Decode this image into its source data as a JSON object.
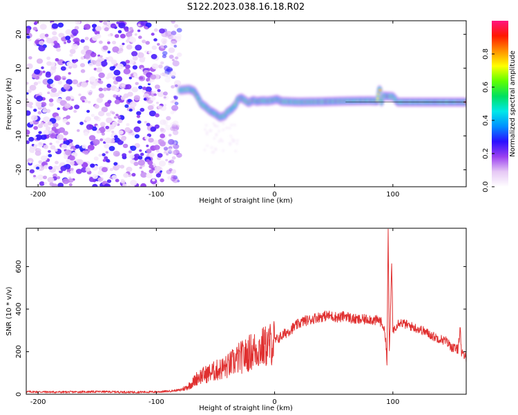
{
  "title": "S122.2023.038.16.18.R02",
  "chart_data": [
    {
      "type": "heatmap",
      "xlabel": "Height of straight line (km)",
      "ylabel": "Frequency (Hz)",
      "xlim": [
        -210,
        162
      ],
      "ylim": [
        -25,
        24
      ],
      "xticks": [
        -200,
        -100,
        0,
        100
      ],
      "yticks": [
        -20,
        -10,
        0,
        10,
        20
      ],
      "colorbar": {
        "label": "Normalized spectral amplitude",
        "range": [
          0,
          1
        ],
        "ticks": [
          "0.0",
          "0.2",
          "0.4",
          "0.6",
          "0.8"
        ],
        "tick_values": [
          0.0,
          0.2,
          0.4,
          0.6,
          0.8
        ],
        "colors": [
          "#ffffff",
          "#e6c8f5",
          "#9a40f0",
          "#2a10ff",
          "#0090ff",
          "#00e8e8",
          "#00e060",
          "#60ff00",
          "#ffff00",
          "#ff9000",
          "#ff1800",
          "#ff1480"
        ]
      },
      "noise_region": {
        "x_range": [
          -210,
          -80
        ],
        "y_range": [
          -25,
          24
        ]
      },
      "centerline": [
        [
          -80,
          3.5
        ],
        [
          -72,
          3.8
        ],
        [
          -68,
          3.2
        ],
        [
          -65,
          1.5
        ],
        [
          -62,
          -0.5
        ],
        [
          -58,
          -1.5
        ],
        [
          -55,
          -2.5
        ],
        [
          -50,
          -3.5
        ],
        [
          -46,
          -4.5
        ],
        [
          -42,
          -4.0
        ],
        [
          -40,
          -3.0
        ],
        [
          -36,
          -2.0
        ],
        [
          -33,
          -0.8
        ],
        [
          -31,
          0.8
        ],
        [
          -28,
          1.2
        ],
        [
          -25,
          0.5
        ],
        [
          -22,
          -0.2
        ],
        [
          -18,
          0.5
        ],
        [
          -15,
          0.2
        ],
        [
          -10,
          0.4
        ],
        [
          -6,
          0.3
        ],
        [
          -2,
          0.5
        ],
        [
          2,
          0.8
        ],
        [
          6,
          0.2
        ],
        [
          20,
          0.0
        ],
        [
          40,
          0.1
        ],
        [
          60,
          0.3
        ],
        [
          80,
          0.4
        ],
        [
          87,
          0.3
        ],
        [
          89,
          4.5
        ],
        [
          90,
          -0.5
        ],
        [
          92,
          1.8
        ],
        [
          100,
          1.6
        ],
        [
          104,
          0.0
        ],
        [
          130,
          0.0
        ],
        [
          162,
          0.0
        ]
      ]
    },
    {
      "type": "line",
      "xlabel": "Height of straight line (km)",
      "ylabel": "SNR (10 * v/v)",
      "xlim": [
        -210,
        162
      ],
      "ylim": [
        0,
        780
      ],
      "xticks": [
        -200,
        -100,
        0,
        100
      ],
      "yticks": [
        0,
        200,
        400,
        600
      ],
      "color": "#e03030",
      "series": [
        {
          "x": [
            -210,
            -180,
            -150,
            -120,
            -100,
            -90,
            -80,
            -75,
            -70,
            -65,
            -60,
            -55,
            -50,
            -45,
            -40,
            -35,
            -30,
            -25,
            -20,
            -15,
            -10,
            -5,
            0,
            5,
            10,
            15,
            20,
            25,
            30,
            35,
            40,
            45,
            50,
            55,
            60,
            65,
            70,
            75,
            80,
            85,
            88,
            90,
            92,
            94,
            95,
            96,
            97,
            98,
            99,
            100,
            105,
            110,
            115,
            120,
            125,
            130,
            135,
            140,
            145,
            150,
            155,
            157,
            158,
            159,
            162
          ],
          "y": [
            12,
            10,
            12,
            10,
            11,
            14,
            20,
            30,
            50,
            80,
            90,
            100,
            110,
            120,
            130,
            150,
            170,
            180,
            200,
            210,
            220,
            230,
            250,
            270,
            290,
            310,
            330,
            345,
            350,
            360,
            365,
            370,
            365,
            360,
            370,
            355,
            350,
            350,
            355,
            345,
            350,
            340,
            320,
            260,
            140,
            780,
            200,
            380,
            620,
            300,
            340,
            330,
            320,
            310,
            300,
            285,
            270,
            260,
            250,
            220,
            210,
            320,
            180,
            190,
            170
          ]
        }
      ]
    }
  ]
}
